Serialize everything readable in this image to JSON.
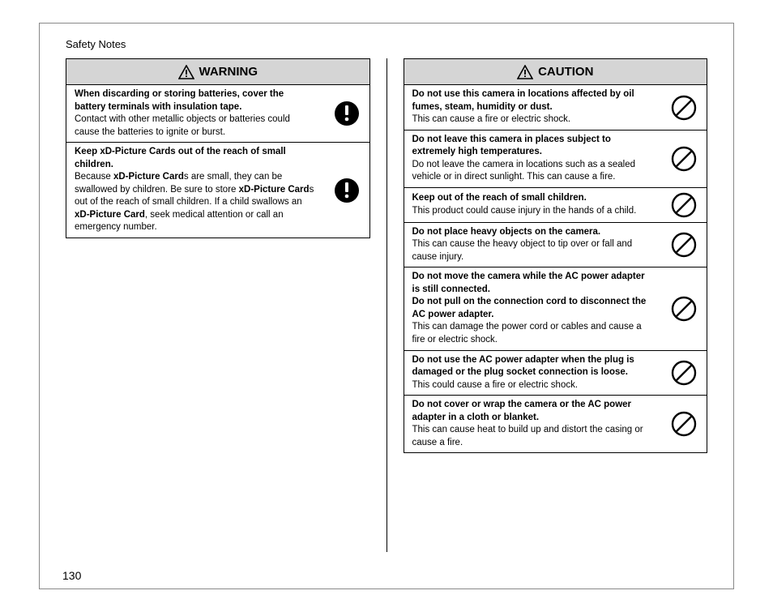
{
  "header": "Safety Notes",
  "page_number": "130",
  "colors": {
    "header_bg": "#d5d5d5",
    "border": "#000000",
    "text": "#000000"
  },
  "warning": {
    "title": "WARNING",
    "icon_type": "warning-triangle",
    "rows": [
      {
        "bold": "When discarding or storing batteries, cover the battery terminals with insulation tape.",
        "body": "Contact with other metallic objects or batteries could cause the batteries to ignite or burst.",
        "icon": "exclaim"
      },
      {
        "bold": "Keep xD-Picture Cards out of the reach of small children.",
        "body_html": "Because <b>xD-Picture Card</b>s are small, they can be swallowed by children. Be sure to store <b>xD-Picture Card</b>s out of the reach of small children. If a child swallows an <b>xD-Picture Card</b>, seek medical attention or call an emergency number.",
        "icon": "exclaim"
      }
    ]
  },
  "caution": {
    "title": "CAUTION",
    "icon_type": "warning-triangle",
    "rows": [
      {
        "bold": "Do not use this camera in locations affected by oil fumes, steam, humidity or dust.",
        "body": "This can cause a fire or electric shock.",
        "icon": "prohibit"
      },
      {
        "bold": "Do not leave this camera in places subject to extremely high temperatures.",
        "body": "Do not leave the camera in locations such as a sealed vehicle or in direct sunlight. This can cause a fire.",
        "icon": "prohibit"
      },
      {
        "bold": "Keep out of the reach of small children.",
        "body": "This product could cause injury in the hands of a child.",
        "icon": "prohibit"
      },
      {
        "bold": "Do not place heavy objects on the camera.",
        "body": "This can cause the heavy object to tip over or fall and cause injury.",
        "icon": "prohibit"
      },
      {
        "bold": "Do not move the camera while the AC power adapter is still connected.\nDo not pull on the connection cord to disconnect the AC power adapter.",
        "body": "This can damage the power cord or cables and cause a fire or electric shock.",
        "icon": "prohibit"
      },
      {
        "bold": "Do not use the AC power adapter when the plug is damaged or the plug socket connection is loose.",
        "body": "This could cause a fire or electric shock.",
        "icon": "prohibit"
      },
      {
        "bold": "Do not cover or wrap the camera or the AC power adapter in a cloth or blanket.",
        "body": "This can cause heat to build up and distort the casing or cause a fire.",
        "icon": "prohibit"
      }
    ]
  }
}
